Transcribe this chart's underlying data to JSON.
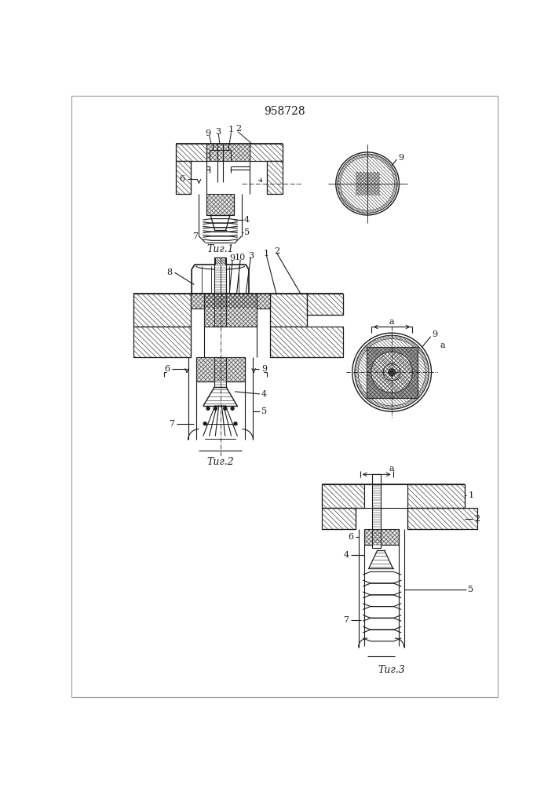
{
  "title": "958728",
  "fig1_label": "Τиг.1",
  "fig2_label": "Τиг.2",
  "fig3_label": "Τиг.3",
  "background_color": "#ffffff",
  "line_color": "#1a1a1a",
  "title_fontsize": 10,
  "label_fontsize": 9,
  "anno_fontsize": 8,
  "fig_width": 7.07,
  "fig_height": 10.0
}
